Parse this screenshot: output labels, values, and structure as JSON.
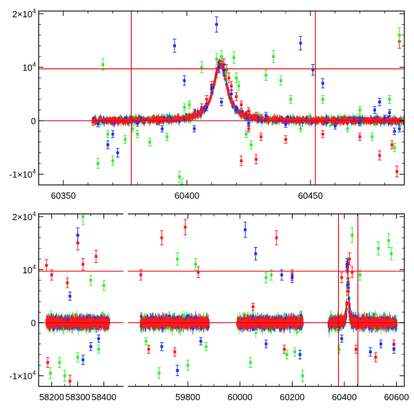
{
  "colors": {
    "red": "#ff1a1a",
    "green": "#33ee33",
    "blue": "#1a33ee",
    "refline": "#e00000",
    "axis": "#000000"
  },
  "chart_data": [
    {
      "type": "scatter",
      "title": "",
      "xlabel": "",
      "ylabel": "",
      "xlim": [
        60340,
        60488
      ],
      "ylim": [
        -12000,
        20500
      ],
      "grid": false,
      "legend": "none",
      "x_ticks": [
        60350,
        60400,
        60450
      ],
      "x_tick_labels": [
        "60350",
        "60400",
        "60450"
      ],
      "y_ticks": [
        -10000,
        0,
        10000,
        20000
      ],
      "y_tick_labels": {
        "neg": {
          "mant": "-1×10",
          "exp": "4"
        },
        "zero": "0",
        "pos1": {
          "mant": "10",
          "exp": "4"
        },
        "pos2": {
          "mant": "2×10",
          "exp": "4"
        }
      },
      "h_reference_lines": [
        0,
        9700
      ],
      "v_reference_lines": [
        60377.5,
        60452
      ],
      "series": [
        {
          "color": "red",
          "description_points": [
            [
              60362,
              -300
            ],
            [
              60370,
              -100
            ],
            [
              60380,
              50
            ],
            [
              60390,
              100
            ],
            [
              60395,
              300
            ],
            [
              60400,
              700
            ],
            [
              60403,
              1500
            ],
            [
              60406,
              2500
            ],
            [
              60408,
              4000
            ],
            [
              60410,
              6500
            ],
            [
              60412,
              9000
            ],
            [
              60413,
              10300
            ],
            [
              60414,
              11000
            ],
            [
              60415,
              10500
            ],
            [
              60416,
              9500
            ],
            [
              60417,
              8000
            ],
            [
              60418,
              6500
            ],
            [
              60420,
              4500
            ],
            [
              60422,
              3000
            ],
            [
              60425,
              1800
            ],
            [
              60428,
              1000
            ],
            [
              60432,
              500
            ],
            [
              60438,
              300
            ],
            [
              60445,
              200
            ],
            [
              60455,
              150
            ],
            [
              60465,
              100
            ],
            [
              60475,
              0
            ],
            [
              60485,
              -100
            ],
            [
              60425,
              -1500
            ],
            [
              60430,
              -3000
            ],
            [
              60440,
              -3500
            ],
            [
              60455,
              -2500
            ],
            [
              60470,
              -3000
            ],
            [
              60483,
              -4500
            ],
            [
              60422,
              -7500
            ],
            [
              60428,
              -7200
            ],
            [
              60485,
              -9500
            ],
            [
              60486,
              14800
            ],
            [
              60478,
              -6500
            ]
          ]
        },
        {
          "color": "green",
          "description_points": [
            [
              60366,
              10500
            ],
            [
              60364,
              -8000
            ],
            [
              60370,
              -7500
            ],
            [
              60368,
              -2500
            ],
            [
              60375,
              -3500
            ],
            [
              60385,
              -4000
            ],
            [
              60392,
              -3000
            ],
            [
              60397,
              -10500
            ],
            [
              60398,
              -12000
            ],
            [
              60399,
              2500
            ],
            [
              60401,
              3000
            ],
            [
              60406,
              10000
            ],
            [
              60412,
              11500
            ],
            [
              60414,
              12000
            ],
            [
              60416,
              9000
            ],
            [
              60420,
              8000
            ],
            [
              60419,
              11800
            ],
            [
              60421,
              6500
            ],
            [
              60424,
              -2500
            ],
            [
              60426,
              -4500
            ],
            [
              60432,
              8500
            ],
            [
              60435,
              12000
            ],
            [
              60438,
              7500
            ],
            [
              60442,
              4000
            ],
            [
              60446,
              -1500
            ],
            [
              60455,
              4000
            ],
            [
              60465,
              -1500
            ],
            [
              60470,
              2000
            ],
            [
              60475,
              -3000
            ],
            [
              60482,
              4000
            ],
            [
              60484,
              -5000
            ],
            [
              60486,
              16000
            ],
            [
              60378,
              -1500
            ],
            [
              60380,
              -2500
            ]
          ]
        },
        {
          "color": "blue",
          "description_points": [
            [
              60364,
              -600
            ],
            [
              60368,
              -4500
            ],
            [
              60370,
              -2500
            ],
            [
              60372,
              -6000
            ],
            [
              60380,
              -500
            ],
            [
              60390,
              -1500
            ],
            [
              60395,
              14000
            ],
            [
              60399,
              7500
            ],
            [
              60403,
              -1500
            ],
            [
              60408,
              2500
            ],
            [
              60410,
              6000
            ],
            [
              60412,
              18000
            ],
            [
              60413,
              10000
            ],
            [
              60415,
              9500
            ],
            [
              60418,
              5000
            ],
            [
              60420,
              2000
            ],
            [
              60425,
              -500
            ],
            [
              60432,
              1000
            ],
            [
              60440,
              -700
            ],
            [
              60446,
              14500
            ],
            [
              60451,
              9500
            ],
            [
              60455,
              7000
            ],
            [
              60460,
              -1000
            ],
            [
              60470,
              -400
            ],
            [
              60476,
              2000
            ],
            [
              60478,
              3500
            ],
            [
              60480,
              500
            ],
            [
              60482,
              1500
            ],
            [
              60484,
              -2000
            ],
            [
              60486,
              -1500
            ],
            [
              60414,
              3500
            ]
          ]
        }
      ]
    },
    {
      "type": "scatter",
      "title": "",
      "xlabel": "",
      "ylabel": "",
      "xlim": [
        58150,
        60630
      ],
      "ylim": [
        -12000,
        20500
      ],
      "x_breaks": [
        [
          58475,
          59570
        ]
      ],
      "grid": false,
      "legend": "none",
      "x_ticks": [
        58200,
        58300,
        58400,
        59800,
        60000,
        60200,
        60400,
        60600
      ],
      "x_tick_labels": [
        "58200",
        "58300",
        "58400",
        "59800",
        "60000",
        "60200",
        "60400",
        "60600"
      ],
      "y_ticks": [
        -10000,
        0,
        10000,
        20000
      ],
      "y_tick_labels": {
        "neg": {
          "mant": "-1×10",
          "exp": "4"
        },
        "zero": "0",
        "pos1": {
          "mant": "10",
          "exp": "4"
        },
        "pos2": {
          "mant": "2×10",
          "exp": "4"
        }
      },
      "h_reference_lines": [
        0,
        9700
      ],
      "v_reference_lines": [
        60377.5,
        60452
      ],
      "observing_seasons": [
        [
          58180,
          58420
        ],
        [
          59620,
          59880
        ],
        [
          59990,
          60240
        ],
        [
          60340,
          60600
        ]
      ],
      "series": [
        {
          "color": "red",
          "description_points": [
            [
              58180,
              10800
            ],
            [
              58185,
              -7500
            ],
            [
              58200,
              9000
            ],
            [
              58260,
              7500
            ],
            [
              58270,
              -11000
            ],
            [
              58300,
              15000
            ],
            [
              58320,
              11000
            ],
            [
              58370,
              12500
            ],
            [
              59620,
              9000
            ],
            [
              59650,
              -5000
            ],
            [
              59700,
              16000
            ],
            [
              59750,
              -5500
            ],
            [
              59790,
              18000
            ],
            [
              59840,
              9500
            ],
            [
              60050,
              3000
            ],
            [
              60140,
              16000
            ],
            [
              60170,
              -5000
            ],
            [
              60200,
              9000
            ],
            [
              60390,
              8500
            ],
            [
              60410,
              10500
            ],
            [
              60420,
              12000
            ],
            [
              60430,
              9500
            ],
            [
              60445,
              -5000
            ],
            [
              60520,
              -6500
            ],
            [
              60590,
              -4000
            ]
          ]
        },
        {
          "color": "green",
          "description_points": [
            [
              58195,
              -9500
            ],
            [
              58230,
              -7500
            ],
            [
              58250,
              -10000
            ],
            [
              58300,
              -6500
            ],
            [
              58320,
              20000
            ],
            [
              58350,
              8000
            ],
            [
              58380,
              -5000
            ],
            [
              58400,
              7000
            ],
            [
              59640,
              -3500
            ],
            [
              59690,
              -9500
            ],
            [
              59760,
              12000
            ],
            [
              59800,
              -8000
            ],
            [
              59830,
              11000
            ],
            [
              59870,
              -4500
            ],
            [
              60040,
              -7500
            ],
            [
              60100,
              8500
            ],
            [
              60120,
              9000
            ],
            [
              60180,
              -6000
            ],
            [
              60210,
              -5500
            ],
            [
              60240,
              -10000
            ],
            [
              60380,
              -5000
            ],
            [
              60430,
              16500
            ],
            [
              60460,
              9000
            ],
            [
              60530,
              14000
            ],
            [
              60570,
              15500
            ],
            [
              60580,
              13000
            ]
          ]
        },
        {
          "color": "blue",
          "description_points": [
            [
              58270,
              5000
            ],
            [
              58300,
              16500
            ],
            [
              58320,
              -7000
            ],
            [
              58350,
              -4500
            ],
            [
              58380,
              -3000
            ],
            [
              59700,
              -4500
            ],
            [
              59760,
              -9000
            ],
            [
              59850,
              -3500
            ],
            [
              60020,
              17500
            ],
            [
              60060,
              13000
            ],
            [
              60100,
              -4000
            ],
            [
              60160,
              9000
            ],
            [
              60200,
              8500
            ],
            [
              60230,
              -6000
            ],
            [
              60390,
              -3000
            ],
            [
              60410,
              11000
            ],
            [
              60500,
              -5500
            ],
            [
              60540,
              -4000
            ],
            [
              60590,
              -5000
            ]
          ]
        }
      ]
    }
  ]
}
